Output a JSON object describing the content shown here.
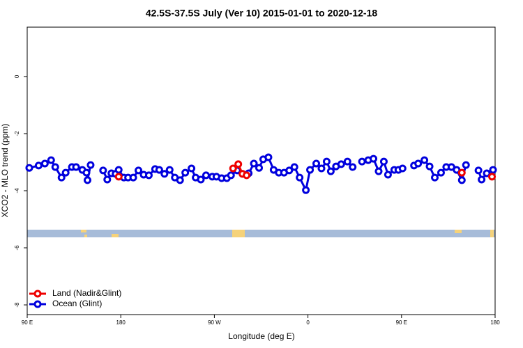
{
  "chart_data": {
    "type": "line",
    "title": "42.5S-37.5S July (Ver 10)   2015-01-01 to 2020-12-18",
    "x_label": "Longitude (deg E)",
    "y_label": "XCO2 - MLO trend (ppm)",
    "xlim": [
      90,
      540
    ],
    "xticks": [
      {
        "value": 90,
        "label": "90 E"
      },
      180,
      {
        "value": 270,
        "label": "90 W"
      },
      {
        "value": 360,
        "label": "0"
      },
      {
        "value": 450,
        "label": "90 E"
      },
      {
        "value": 540,
        "label": "180"
      }
    ],
    "ylim": [
      -8.34,
      1.73
    ],
    "yticks": [
      0,
      -2,
      -4,
      -6,
      -8
    ],
    "legend": "bottom-left",
    "series": [
      {
        "name": "Ocean (Glint)",
        "color": "#0000dd",
        "x": [
          92,
          101,
          107,
          113,
          117,
          123,
          127,
          133,
          137,
          143,
          147,
          148,
          151,
          null,
          163,
          167,
          171,
          175,
          178,
          183,
          187,
          192,
          197,
          202,
          207,
          213,
          217,
          222,
          227,
          232,
          237,
          242,
          248,
          252,
          257,
          262,
          268,
          272,
          277,
          282,
          286,
          292,
          297,
          303,
          308,
          313,
          317,
          322,
          327,
          332,
          337,
          342,
          347,
          352,
          358,
          362,
          368,
          373,
          378,
          382,
          387,
          392,
          398,
          403,
          null,
          412,
          418,
          423,
          428,
          433,
          437,
          443,
          447,
          451,
          null,
          462,
          466,
          472,
          477,
          482,
          488,
          493,
          498,
          503,
          508,
          512,
          null,
          524,
          527,
          532,
          538
        ],
        "values": [
          -3.2,
          -3.12,
          -3.05,
          -2.93,
          -3.17,
          -3.54,
          -3.37,
          -3.17,
          -3.17,
          -3.27,
          -3.37,
          -3.63,
          -3.1,
          null,
          -3.29,
          -3.61,
          -3.39,
          -3.41,
          -3.27,
          -3.54,
          -3.54,
          -3.54,
          -3.29,
          -3.44,
          -3.46,
          -3.24,
          -3.27,
          -3.41,
          -3.27,
          -3.54,
          -3.63,
          -3.37,
          -3.22,
          -3.54,
          -3.61,
          -3.46,
          -3.51,
          -3.51,
          -3.56,
          -3.56,
          -3.46,
          -3.29,
          -3.41,
          -3.39,
          -3.05,
          -3.2,
          -2.9,
          -2.83,
          -3.27,
          -3.37,
          -3.37,
          -3.29,
          -3.17,
          -3.54,
          -3.98,
          -3.27,
          -3.05,
          -3.22,
          -2.98,
          -3.32,
          -3.15,
          -3.07,
          -2.98,
          -3.17,
          null,
          -2.98,
          -2.93,
          -2.88,
          -3.32,
          -2.98,
          -3.44,
          -3.27,
          -3.27,
          -3.22,
          null,
          -3.12,
          -3.05,
          -2.93,
          -3.15,
          -3.54,
          -3.37,
          -3.17,
          -3.17,
          -3.27,
          -3.63,
          -3.1,
          null,
          -3.29,
          -3.61,
          -3.39,
          -3.27
        ]
      },
      {
        "name": "Land (Nadir&Glint)",
        "color": "#ee0000",
        "x": [
          178,
          null,
          288,
          293,
          297,
          301,
          null,
          508,
          null,
          537
        ],
        "values": [
          -3.51,
          null,
          -3.22,
          -3.07,
          -3.41,
          -3.46,
          null,
          -3.37,
          null,
          -3.51
        ]
      }
    ]
  }
}
